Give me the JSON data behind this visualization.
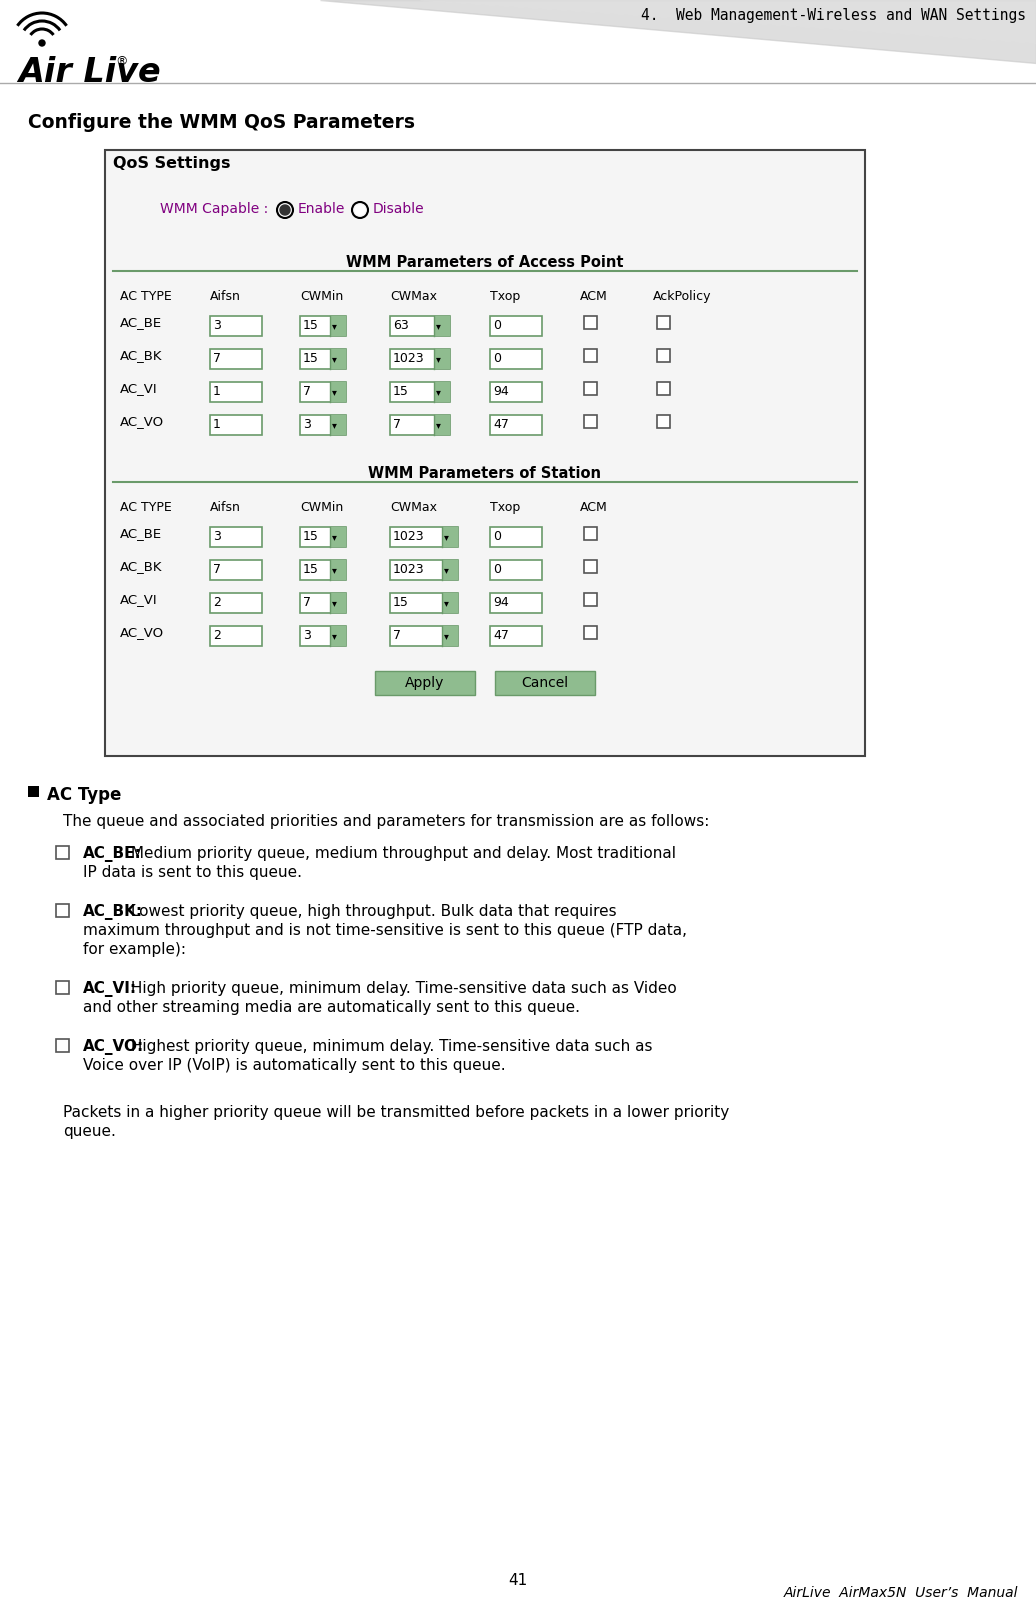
{
  "header_text": "4.  Web Management-Wireless and WAN Settings",
  "section_title": "Configure the WMM QoS Parameters",
  "qos_title": "QoS Settings",
  "wmm_capable_label": "WMM Capable :",
  "enable_label": "Enable",
  "disable_label": "Disable",
  "ap_section_title": "WMM Parameters of Access Point",
  "sta_section_title": "WMM Parameters of Station",
  "ap_headers": [
    "AC TYPE",
    "Aifsn",
    "CWMin",
    "CWMax",
    "Txop",
    "ACM",
    "AckPolicy"
  ],
  "ap_rows": [
    {
      "type": "AC_BE",
      "aifsn": "3",
      "cwmin": "15",
      "cwmax": "63",
      "txop": "0",
      "acm": false,
      "ackpolicy": false
    },
    {
      "type": "AC_BK",
      "aifsn": "7",
      "cwmin": "15",
      "cwmax": "1023",
      "txop": "0",
      "acm": false,
      "ackpolicy": false
    },
    {
      "type": "AC_VI",
      "aifsn": "1",
      "cwmin": "7",
      "cwmax": "15",
      "txop": "94",
      "acm": false,
      "ackpolicy": false
    },
    {
      "type": "AC_VO",
      "aifsn": "1",
      "cwmin": "3",
      "cwmax": "7",
      "txop": "47",
      "acm": false,
      "ackpolicy": false
    }
  ],
  "sta_headers": [
    "AC TYPE",
    "Aifsn",
    "CWMin",
    "CWMax",
    "Txop",
    "ACM"
  ],
  "sta_rows": [
    {
      "type": "AC_BE",
      "aifsn": "3",
      "cwmin": "15",
      "cwmax": "1023",
      "txop": "0",
      "acm": false
    },
    {
      "type": "AC_BK",
      "aifsn": "7",
      "cwmin": "15",
      "cwmax": "1023",
      "txop": "0",
      "acm": false
    },
    {
      "type": "AC_VI",
      "aifsn": "2",
      "cwmin": "7",
      "cwmax": "15",
      "txop": "94",
      "acm": false
    },
    {
      "type": "AC_VO",
      "aifsn": "2",
      "cwmin": "3",
      "cwmax": "7",
      "txop": "47",
      "acm": false
    }
  ],
  "bullet_title": "AC Type",
  "bullet_intro": "The queue and associated priorities and parameters for transmission are as follows:",
  "bullet_items": [
    {
      "key": "AC_BE:",
      "lines": [
        "Medium priority queue, medium throughput and delay. Most traditional",
        "IP data is sent to this queue."
      ]
    },
    {
      "key": "AC_BK:",
      "lines": [
        "Lowest priority queue, high throughput. Bulk data that requires",
        "maximum throughput and is not time-sensitive is sent to this queue (FTP data,",
        "for example):"
      ]
    },
    {
      "key": "AC_VI:",
      "lines": [
        "High priority queue, minimum delay. Time-sensitive data such as Video",
        "and other streaming media are automatically sent to this queue."
      ]
    },
    {
      "key": "AC_VO:",
      "lines": [
        "Highest priority queue, minimum delay. Time-sensitive data such as",
        "Voice over IP (VoIP) is automatically sent to this queue."
      ]
    }
  ],
  "footer_note_lines": [
    "Packets in a higher priority queue will be transmitted before packets in a lower priority",
    "queue."
  ],
  "page_num": "41",
  "footer_right": "AirLive  AirMax5N  User’s  Manual",
  "bg_color": "#ffffff",
  "green_border": "#6a9a6a",
  "green_fill": "#8fbc8f",
  "box_border": "#666666",
  "text_color": "#000000",
  "purple_text": "#800080"
}
